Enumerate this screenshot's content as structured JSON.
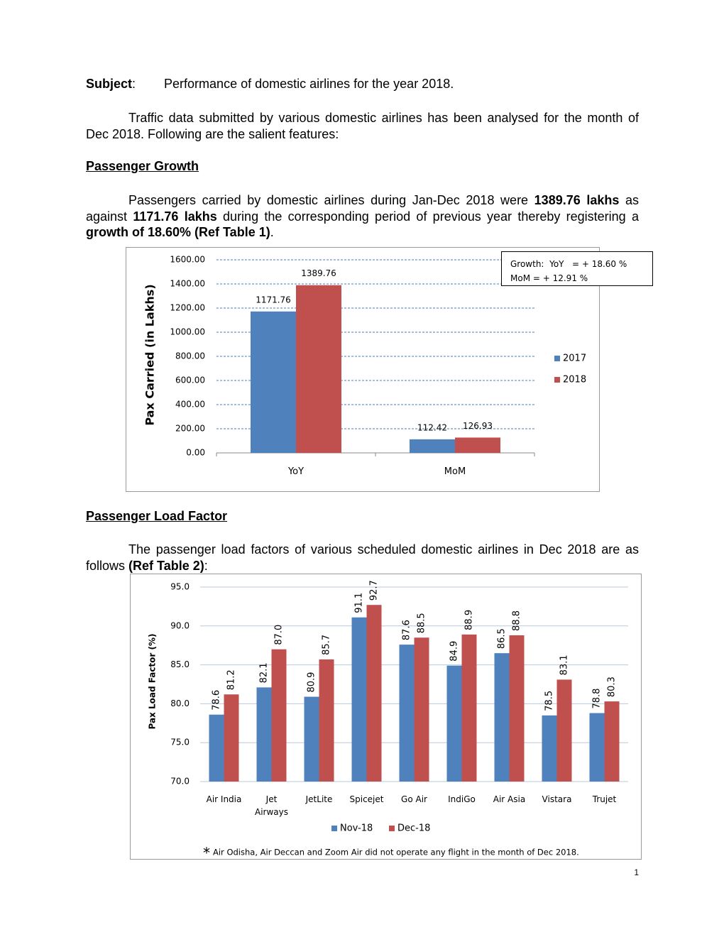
{
  "subject": {
    "runs": [
      {
        "text": "Subject",
        "bold": true
      },
      {
        "text": ":",
        "bold": false
      }
    ],
    "text": "Performance of domestic airlines for the year 2018."
  },
  "intro": "Traffic data submitted by various domestic airlines has been analysed for the month of Dec 2018. Following are the salient features:",
  "sections": [
    {
      "heading": "Passenger Growth",
      "runs": [
        {
          "text": "Passengers carried by domestic airlines during Jan-Dec 2018 were ",
          "bold": false
        },
        {
          "text": "1389.76 lakhs",
          "bold": true
        },
        {
          "text": " as against ",
          "bold": false
        },
        {
          "text": "1171.76 lakhs",
          "bold": true
        },
        {
          "text": " during the corresponding period of previous year thereby registering a ",
          "bold": false
        },
        {
          "text": "growth of 18.60% (Ref Table 1)",
          "bold": true
        },
        {
          "text": ".",
          "bold": false
        }
      ]
    },
    {
      "heading": "Passenger Load Factor",
      "runs": [
        {
          "text": "The passenger load factors of various scheduled domestic airlines in Dec 2018 are as follows ",
          "bold": false
        },
        {
          "text": "(Ref Table 2)",
          "bold": true
        },
        {
          "text": ":",
          "bold": false
        }
      ]
    }
  ],
  "chart_data": [
    {
      "type": "bar",
      "ylabel": "Pax Carried (in Lakhs)",
      "categories": [
        "YoY",
        "MoM"
      ],
      "series": [
        {
          "name": "2017",
          "color": "#4f81bd",
          "values": [
            1171.76,
            112.42
          ]
        },
        {
          "name": "2018",
          "color": "#c0504d",
          "values": [
            1389.76,
            126.93
          ]
        }
      ],
      "ylim": [
        0,
        1600
      ],
      "yticks": [
        {
          "value": 0,
          "label": "0.00"
        },
        {
          "value": 200,
          "label": "200.00"
        },
        {
          "value": 400,
          "label": "400.00"
        },
        {
          "value": 600,
          "label": "600.00"
        },
        {
          "value": 800,
          "label": "800.00"
        },
        {
          "value": 1000,
          "label": "1000.00"
        },
        {
          "value": 1200,
          "label": "1200.00"
        },
        {
          "value": 1400,
          "label": "1400.00"
        },
        {
          "value": 1600,
          "label": "1600.00"
        }
      ],
      "grid": true,
      "legend": "right",
      "annotations": [
        "Growth:  YoY   = + 18.60 %",
        "MoM = + 12.91 %"
      ]
    },
    {
      "type": "bar",
      "ylabel": "Pax Load Factor (%)",
      "categories": [
        "Air India",
        "Jet Airways",
        "JetLite",
        "Spicejet",
        "Go Air",
        "IndiGo",
        "Air Asia",
        "Vistara",
        "Trujet"
      ],
      "series": [
        {
          "name": "Nov-18",
          "color": "#4f81bd",
          "values": [
            78.6,
            82.1,
            80.9,
            91.1,
            87.6,
            84.9,
            86.5,
            78.5,
            78.8
          ],
          "value_labels": [
            "78.6",
            "82.1",
            "80.9",
            "91.1",
            "87.6",
            "84.9",
            "86.5",
            "78.5",
            "78.8"
          ]
        },
        {
          "name": "Dec-18",
          "color": "#c0504d",
          "values": [
            81.2,
            87.0,
            85.7,
            92.7,
            88.5,
            88.9,
            88.8,
            83.1,
            80.3
          ],
          "value_labels": [
            "81.2",
            "87.0",
            "85.7",
            "92.7",
            "88.5",
            "88.9",
            "88.8",
            "83.1",
            "80.3"
          ]
        }
      ],
      "ylim": [
        70,
        95
      ],
      "yticks": [
        {
          "value": 70,
          "label": "70.0"
        },
        {
          "value": 75,
          "label": "75.0"
        },
        {
          "value": 80,
          "label": "80.0"
        },
        {
          "value": 85,
          "label": "85.0"
        },
        {
          "value": 90,
          "label": "90.0"
        },
        {
          "value": 95,
          "label": "95.0"
        }
      ],
      "grid": true,
      "legend": "bottom",
      "footnote": {
        "mark": "*",
        "text": "Air Odisha, Air Deccan and Zoom Air did not operate any flight in the month of Dec 2018."
      }
    }
  ],
  "page_number": "1"
}
